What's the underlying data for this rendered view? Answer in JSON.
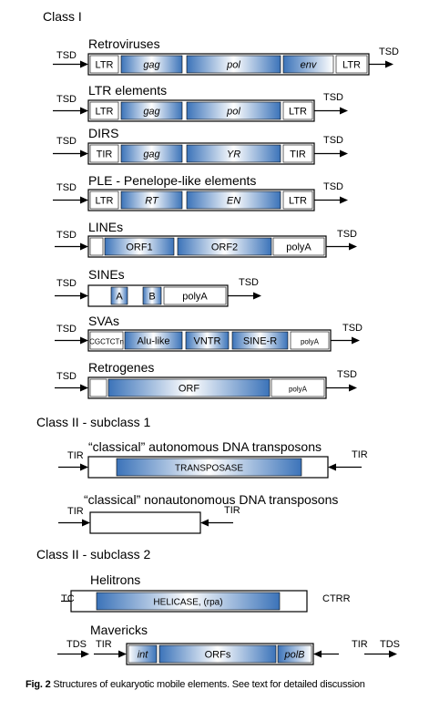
{
  "sections": {
    "class1": "Class I",
    "class2_sub1": "Class II - subclass 1",
    "class2_sub2": "Class II - subclass 2"
  },
  "colors": {
    "accent": "#3b73b9",
    "light": "#ffffff",
    "stroke": "#000000"
  },
  "elements": [
    {
      "name": "Retroviruses",
      "left": "TSD",
      "right": "TSD",
      "segments": [
        "LTR",
        "gag",
        "pol",
        "env",
        "LTR"
      ]
    },
    {
      "name": "LTR elements",
      "left": "TSD",
      "right": "TSD",
      "segments": [
        "LTR",
        "gag",
        "pol",
        "LTR"
      ]
    },
    {
      "name": "DIRS",
      "left": "TSD",
      "right": "TSD",
      "segments": [
        "TIR",
        "gag",
        "YR",
        "TIR"
      ]
    },
    {
      "name": "PLE - Penelope-like elements",
      "left": "TSD",
      "right": "TSD",
      "segments": [
        "LTR",
        "RT",
        "EN",
        "LTR"
      ]
    },
    {
      "name": "LINEs",
      "left": "TSD",
      "right": "TSD",
      "segments": [
        "",
        "ORF1",
        "ORF2",
        "polyA"
      ]
    },
    {
      "name": "SINEs",
      "left": "TSD",
      "right": "TSD",
      "segments": [
        "A",
        "B",
        "polyA"
      ]
    },
    {
      "name": "SVAs",
      "left": "TSD",
      "right": "TSD",
      "segments": [
        "CGCTCTn",
        "Alu-like",
        "VNTR",
        "SINE-R",
        "polyA"
      ]
    },
    {
      "name": "Retrogenes",
      "left": "TSD",
      "right": "TSD",
      "segments": [
        "",
        "ORF",
        "polyA"
      ]
    },
    {
      "name": "“classical” autonomous DNA transposons",
      "left": "TIR",
      "right": "TIR",
      "segments": [
        "TRANSPOSASE"
      ]
    },
    {
      "name": "“classical” nonautonomous DNA transposons",
      "left": "TIR",
      "right": "TIR",
      "segments": []
    },
    {
      "name": "Helitrons",
      "left": "TC",
      "right": "CTRR",
      "segments": [
        "HELICASE, (rpa)"
      ]
    },
    {
      "name": "Mavericks",
      "left": "TDS",
      "left2": "TIR",
      "right": "TIR",
      "right2": "TDS",
      "segments": [
        "int",
        "ORFs",
        "polB"
      ]
    }
  ],
  "caption": {
    "label": "Fig. 2",
    "text": " Structures of eukaryotic mobile elements. See text for detailed discussion"
  }
}
